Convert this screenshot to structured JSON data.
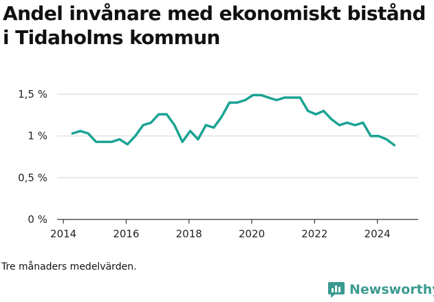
{
  "title": "Andel invånare med ekonomiskt bistånd i Tidaholms kommun",
  "note": "Tre månaders medelvärden.",
  "brand": {
    "name": "Newsworthy",
    "icon": "bar-chart-message-icon",
    "color": "#3a9a90"
  },
  "colors": {
    "line": "#1aa393",
    "grid": "#d9d9d9",
    "axis": "#333333"
  },
  "chart_data": {
    "type": "line",
    "title": "Andel invånare med ekonomiskt bistånd i Tidaholms kommun",
    "xlabel": "",
    "ylabel": "",
    "xlim": [
      2013.8,
      2025.3
    ],
    "ylim": [
      0,
      1.5
    ],
    "x_ticks": [
      {
        "value": 2014,
        "label": "2014"
      },
      {
        "value": 2016,
        "label": "2016"
      },
      {
        "value": 2018,
        "label": "2018"
      },
      {
        "value": 2020,
        "label": "2020"
      },
      {
        "value": 2022,
        "label": "2022"
      },
      {
        "value": 2024,
        "label": "2024"
      }
    ],
    "y_ticks": [
      {
        "value": 0,
        "label": "0 %"
      },
      {
        "value": 0.5,
        "label": "0,5 %"
      },
      {
        "value": 1,
        "label": "1 %"
      },
      {
        "value": 1.5,
        "label": "1,5 %"
      }
    ],
    "grid": true,
    "series": [
      {
        "x": [
          2014.29,
          2014.54,
          2014.79,
          2015.04,
          2015.29,
          2015.54,
          2015.79,
          2016.04,
          2016.29,
          2016.54,
          2016.79,
          2017.04,
          2017.29,
          2017.54,
          2017.79,
          2018.04,
          2018.29,
          2018.54,
          2018.79,
          2019.04,
          2019.29,
          2019.54,
          2019.79,
          2020.04,
          2020.29,
          2020.54,
          2020.79,
          2021.04,
          2021.29,
          2021.54,
          2021.79,
          2022.04,
          2022.29,
          2022.54,
          2022.79,
          2023.04,
          2023.29,
          2023.54,
          2023.79,
          2024.04,
          2024.29,
          2024.54
        ],
        "y": [
          1.03,
          1.06,
          1.03,
          0.93,
          0.93,
          0.93,
          0.96,
          0.9,
          1.0,
          1.13,
          1.16,
          1.26,
          1.26,
          1.13,
          0.93,
          1.06,
          0.96,
          1.13,
          1.1,
          1.23,
          1.4,
          1.4,
          1.43,
          1.49,
          1.49,
          1.46,
          1.43,
          1.46,
          1.46,
          1.46,
          1.3,
          1.26,
          1.3,
          1.2,
          1.13,
          1.16,
          1.13,
          1.16,
          1.0,
          1.0,
          0.96,
          0.89
        ]
      }
    ]
  }
}
